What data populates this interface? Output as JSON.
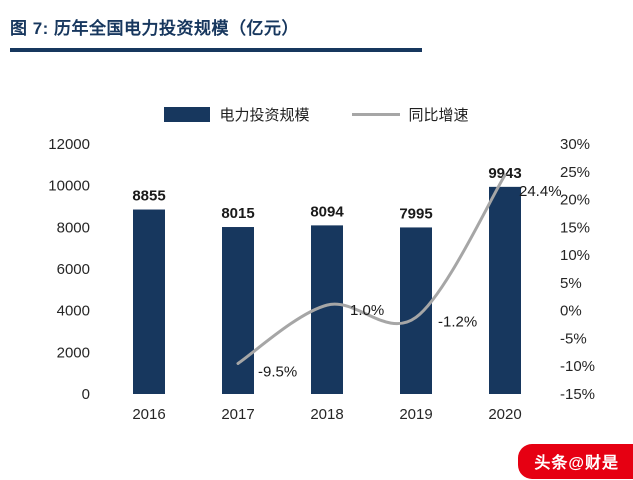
{
  "header": {
    "title": "图 7:  历年全国电力投资规模（亿元）"
  },
  "legend": {
    "bar_label": "电力投资规模",
    "line_label": "同比增速"
  },
  "watermark": {
    "text": "头条@财是"
  },
  "chart_data": {
    "type": "bar",
    "title": "历年全国电力投资规模（亿元）",
    "categories": [
      "2016",
      "2017",
      "2018",
      "2019",
      "2020"
    ],
    "series": [
      {
        "name": "电力投资规模",
        "type": "bar",
        "axis": "left",
        "values": [
          8855,
          8015,
          8094,
          7995,
          9943
        ],
        "color": "#17375E"
      },
      {
        "name": "同比增速",
        "type": "line",
        "axis": "right",
        "values": [
          null,
          -9.5,
          1.0,
          -1.2,
          24.4
        ],
        "color": "#A6A6A6"
      }
    ],
    "bar_labels": [
      "8855",
      "8015",
      "8094",
      "7995",
      "9943"
    ],
    "line_labels": [
      null,
      "-9.5%",
      "1.0%",
      "-1.2%",
      "24.4%"
    ],
    "left_axis": {
      "min": 0,
      "max": 12000,
      "step": 2000,
      "ticks": [
        "12000",
        "10000",
        "8000",
        "6000",
        "4000",
        "2000",
        "0"
      ]
    },
    "right_axis": {
      "min": -15,
      "max": 30,
      "step": 5,
      "suffix": "%",
      "ticks": [
        "30%",
        "25%",
        "20%",
        "15%",
        "10%",
        "5%",
        "0%",
        "-5%",
        "-10%",
        "-15%"
      ]
    },
    "legend_position": "top",
    "grid": false
  }
}
